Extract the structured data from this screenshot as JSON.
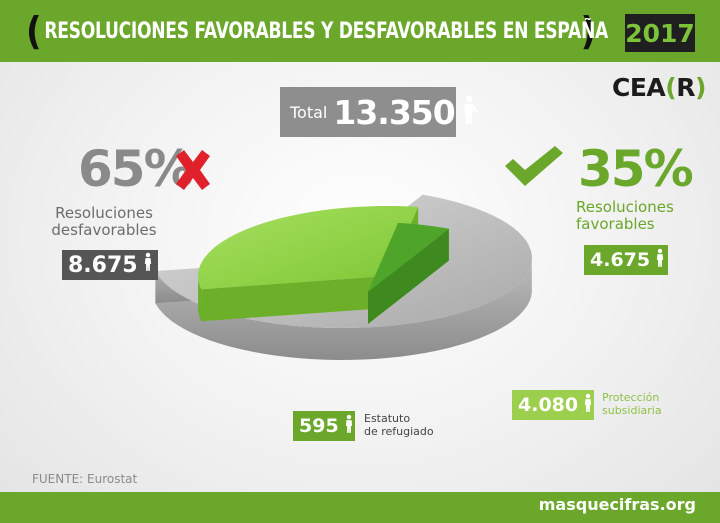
{
  "header": {
    "title": "RESOLUCIONES FAVORABLES Y DESFAVORABLES EN ESPAÑA",
    "year": "2017",
    "brand_main": "CEA",
    "brand_paren_open": "(",
    "brand_letter": "R",
    "brand_paren_close": ")"
  },
  "total": {
    "label": "Total",
    "value": "13.350"
  },
  "chart_data": {
    "type": "pie",
    "title": "RESOLUCIONES FAVORABLES Y DESFAVORABLES EN ESPAÑA",
    "total": 13350,
    "slices": [
      {
        "name": "Resoluciones desfavorables",
        "value": 8675,
        "percent": "65%",
        "color": "#b8b8b8"
      },
      {
        "name": "Protección subsidiaria",
        "value": 4080,
        "color": "#8fd13c"
      },
      {
        "name": "Estatuto de refugiado",
        "value": 595,
        "color": "#4fa52a"
      }
    ],
    "groups": [
      {
        "label": "Resoluciones favorables",
        "value": 4675,
        "percent": "35%"
      }
    ]
  },
  "labels": {
    "unfav_percent": "65%",
    "unfav_desc_line1": "Resoluciones",
    "unfav_desc_line2": "desfavorables",
    "unfav_value": "8.675",
    "fav_percent": "35%",
    "fav_desc_line1": "Resoluciones",
    "fav_desc_line2": "favorables",
    "fav_value": "4.675",
    "ref_value": "595",
    "ref_desc_line1": "Estatuto",
    "ref_desc_line2": "de refugiado",
    "sub_value": "4.080",
    "sub_desc_line1": "Protección",
    "sub_desc_line2": "subsidiaria"
  },
  "footer": {
    "source": "FUENTE: Eurostat",
    "url": "masquecifras.org"
  },
  "colors": {
    "green": "#6aa72a",
    "dark": "#1f1f1f",
    "gray": "#8e8e8e",
    "red": "#e0202a"
  },
  "icons": [
    "person-icon",
    "cross-icon",
    "check-icon"
  ]
}
